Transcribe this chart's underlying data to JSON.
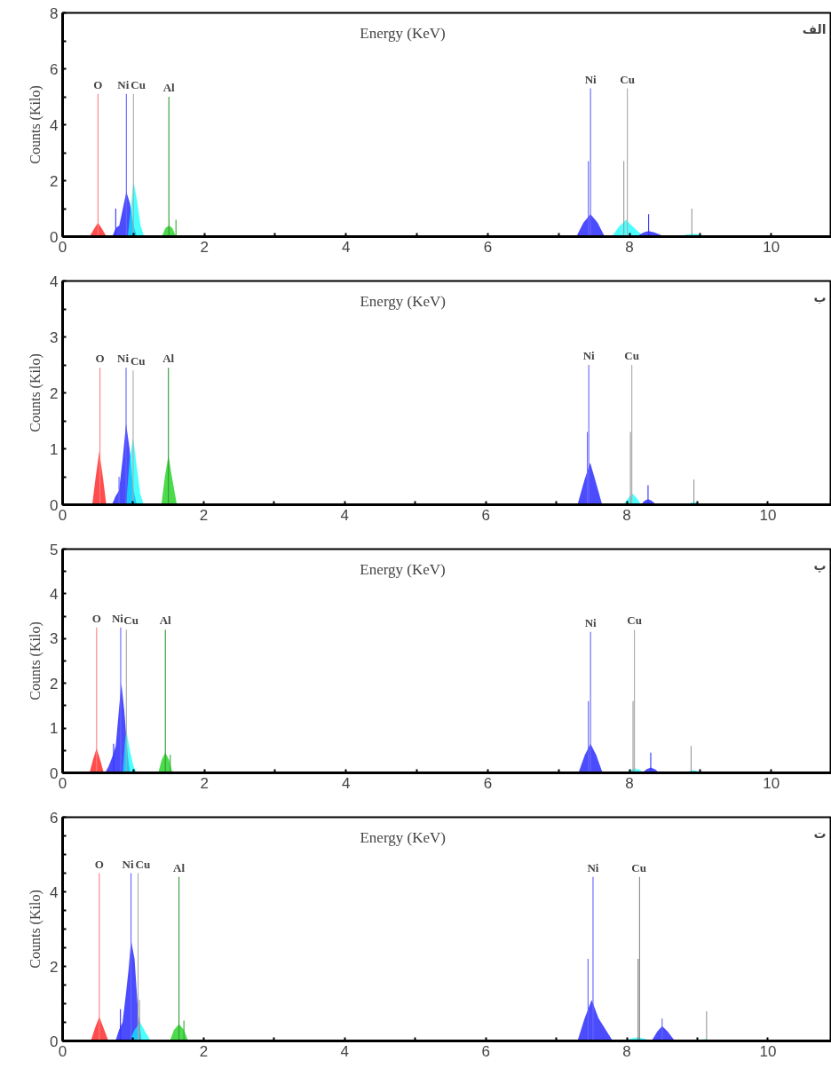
{
  "chart_data": [
    {
      "type": "area",
      "title": "الف",
      "xlabel": "Energy  (KeV)",
      "ylabel": "Counts (Kilo)",
      "xlim": [
        0,
        10.85
      ],
      "ylim": [
        0,
        8
      ],
      "xticks": [
        0,
        {
          "value": 1,
          "label": null
        },
        2,
        {
          "value": 3,
          "label": null
        },
        4,
        {
          "value": 5,
          "label": null
        },
        6,
        {
          "value": 7,
          "label": null
        },
        8,
        {
          "value": 9,
          "label": null
        },
        10
      ],
      "yticks": [
        0,
        {
          "value": 1,
          "label": null
        },
        2,
        {
          "value": 3,
          "label": null
        },
        4,
        {
          "value": 5,
          "label": null
        },
        6,
        {
          "value": 7,
          "label": null
        },
        8
      ],
      "grid": false,
      "series": [
        {
          "color": "#ff0000",
          "x": [
            0.38,
            0.45,
            0.5,
            0.55,
            0.62
          ],
          "values": [
            0,
            0.3,
            0.5,
            0.3,
            0
          ]
        },
        {
          "color": "#0000ff",
          "x": [
            0.7,
            0.75,
            0.8,
            0.85,
            0.9,
            0.95,
            1.0,
            1.05
          ],
          "values": [
            0,
            0.3,
            0.4,
            1.0,
            1.6,
            1.2,
            0.4,
            0
          ]
        },
        {
          "color": "#00ffff",
          "x": [
            0.92,
            0.97,
            1.0,
            1.05,
            1.1,
            1.15
          ],
          "values": [
            0,
            1.2,
            2.0,
            1.3,
            0.4,
            0
          ]
        },
        {
          "color": "#00cc00",
          "x": [
            1.4,
            1.45,
            1.5,
            1.55,
            1.6
          ],
          "values": [
            0,
            0.3,
            0.4,
            0.3,
            0
          ]
        },
        {
          "color": "#0000ff",
          "x": [
            7.25,
            7.35,
            7.45,
            7.55,
            7.65
          ],
          "values": [
            0,
            0.5,
            0.8,
            0.5,
            0
          ]
        },
        {
          "color": "#00ffff",
          "x": [
            7.75,
            7.85,
            7.95,
            8.05,
            8.2
          ],
          "values": [
            0,
            0.35,
            0.6,
            0.35,
            0
          ]
        },
        {
          "color": "#0000ff",
          "x": [
            8.1,
            8.2,
            8.27,
            8.35,
            8.5
          ],
          "values": [
            0,
            0.15,
            0.2,
            0.15,
            0
          ]
        },
        {
          "color": "#00ffff",
          "x": [
            8.7,
            8.8,
            8.9,
            9.0,
            9.05
          ],
          "values": [
            0,
            0.07,
            0.1,
            0.07,
            0
          ]
        },
        {
          "type": "bar",
          "x": [
            0.5,
            0.75,
            0.9,
            1.0,
            1.5,
            1.6,
            7.42,
            7.45,
            7.92,
            7.97,
            8.27,
            8.88
          ],
          "values": [
            5.1,
            1.0,
            5.1,
            5.1,
            5.0,
            0.6,
            2.7,
            5.3,
            2.7,
            5.3,
            0.8,
            1.0
          ],
          "colors": [
            "#ff8080",
            "#3333ff",
            "#6666ff",
            "#aaaaaa",
            "#339933",
            "#33aa33",
            "#6666ff",
            "#6666ff",
            "#999999",
            "#aaaaaa",
            "#3333ff",
            "#999999"
          ]
        }
      ],
      "annotations": [
        {
          "text": "O",
          "x": 0.5,
          "y": 5.1
        },
        {
          "text": "Ni",
          "x": 0.9,
          "y": 5.1
        },
        {
          "text": "Cu",
          "x": 1.0,
          "y": 5.1
        },
        {
          "text": "Al",
          "x": 1.5,
          "y": 5.0
        },
        {
          "text": "Ni",
          "x": 7.45,
          "y": 5.3
        },
        {
          "text": "Cu",
          "x": 7.97,
          "y": 5.3
        }
      ]
    },
    {
      "type": "area",
      "title": "ب",
      "xlabel": "Energy  (KeV)",
      "ylabel": "Counts (Kilo)",
      "xlim": [
        0,
        10.9
      ],
      "ylim": [
        0,
        4
      ],
      "xticks": [
        0,
        {
          "value": 1,
          "label": null
        },
        2,
        {
          "value": 3,
          "label": null
        },
        4,
        {
          "value": 5,
          "label": null
        },
        6,
        {
          "value": 7,
          "label": null
        },
        8,
        {
          "value": 9,
          "label": null
        },
        10
      ],
      "yticks": [
        0,
        {
          "value": 0.5,
          "label": null
        },
        1,
        {
          "value": 1.5,
          "label": null
        },
        2,
        {
          "value": 2.5,
          "label": null
        },
        3,
        {
          "value": 3.5,
          "label": null
        },
        4
      ],
      "grid": false,
      "series": [
        {
          "color": "#ff0000",
          "x": [
            0.42,
            0.47,
            0.52,
            0.57,
            0.62
          ],
          "values": [
            0,
            0.5,
            0.95,
            0.5,
            0
          ]
        },
        {
          "color": "#0000ff",
          "x": [
            0.7,
            0.75,
            0.8,
            0.85,
            0.9,
            0.95,
            1.0,
            1.05
          ],
          "values": [
            0,
            0.15,
            0.25,
            0.8,
            1.45,
            1.0,
            0.3,
            0
          ]
        },
        {
          "color": "#00ffff",
          "x": [
            0.9,
            0.95,
            1.0,
            1.05,
            1.1,
            1.15
          ],
          "values": [
            0,
            0.8,
            1.2,
            0.7,
            0.2,
            0
          ]
        },
        {
          "color": "#00cc00",
          "x": [
            1.4,
            1.45,
            1.5,
            1.55,
            1.62
          ],
          "values": [
            0,
            0.5,
            0.88,
            0.5,
            0
          ]
        },
        {
          "color": "#0000ff",
          "x": [
            7.3,
            7.4,
            7.48,
            7.55,
            7.65
          ],
          "values": [
            0,
            0.45,
            0.75,
            0.45,
            0
          ]
        },
        {
          "color": "#00ffff",
          "x": [
            7.95,
            8.02,
            8.08,
            8.14,
            8.2
          ],
          "values": [
            0,
            0.12,
            0.2,
            0.12,
            0
          ]
        },
        {
          "color": "#0000ff",
          "x": [
            8.2,
            8.25,
            8.3,
            8.35,
            8.42
          ],
          "values": [
            0,
            0.07,
            0.1,
            0.07,
            0
          ]
        },
        {
          "color": "#00ffff",
          "x": [
            8.85,
            8.9,
            8.95,
            9.0,
            9.05
          ],
          "values": [
            0,
            0.03,
            0.05,
            0.03,
            0
          ]
        },
        {
          "type": "bar",
          "x": [
            0.53,
            0.8,
            0.9,
            1.0,
            1.5,
            7.44,
            7.46,
            8.05,
            8.07,
            8.3,
            8.95
          ],
          "values": [
            2.45,
            0.5,
            2.45,
            2.4,
            2.45,
            1.3,
            2.5,
            1.3,
            2.5,
            0.35,
            0.45
          ],
          "colors": [
            "#ff8080",
            "#6666ff",
            "#6666ff",
            "#aaaaaa",
            "#339933",
            "#6666ff",
            "#6666ff",
            "#999999",
            "#aaaaaa",
            "#3333ff",
            "#999999"
          ]
        }
      ],
      "annotations": [
        {
          "text": "O",
          "x": 0.53,
          "y": 2.45
        },
        {
          "text": "Ni",
          "x": 0.9,
          "y": 2.45
        },
        {
          "text": "Cu",
          "x": 1.0,
          "y": 2.4
        },
        {
          "text": "Al",
          "x": 1.5,
          "y": 2.45
        },
        {
          "text": "Ni",
          "x": 7.46,
          "y": 2.5
        },
        {
          "text": "Cu",
          "x": 8.07,
          "y": 2.5
        }
      ]
    },
    {
      "type": "area",
      "title": "پ",
      "xlabel": "Energy  (KeV)",
      "ylabel": "Counts (Kilo)",
      "xlim": [
        0,
        10.85
      ],
      "ylim": [
        0,
        5
      ],
      "xticks": [
        0,
        {
          "value": 1,
          "label": null
        },
        2,
        {
          "value": 3,
          "label": null
        },
        4,
        {
          "value": 5,
          "label": null
        },
        6,
        {
          "value": 7,
          "label": null
        },
        8,
        {
          "value": 9,
          "label": null
        },
        10
      ],
      "yticks": [
        0,
        {
          "value": 0.5,
          "label": null
        },
        1,
        {
          "value": 1.5,
          "label": null
        },
        2,
        {
          "value": 2.5,
          "label": null
        },
        3,
        {
          "value": 3.5,
          "label": null
        },
        4,
        {
          "value": 4.5,
          "label": null
        },
        5
      ],
      "grid": false,
      "series": [
        {
          "color": "#ff0000",
          "x": [
            0.38,
            0.43,
            0.48,
            0.53,
            0.58
          ],
          "values": [
            0,
            0.3,
            0.55,
            0.3,
            0
          ]
        },
        {
          "color": "#0000ff",
          "x": [
            0.6,
            0.65,
            0.7,
            0.75,
            0.8,
            0.83,
            0.87,
            0.92,
            0.95
          ],
          "values": [
            0,
            0.15,
            0.35,
            0.6,
            1.5,
            2.0,
            1.4,
            0.4,
            0
          ]
        },
        {
          "color": "#00ffff",
          "x": [
            0.85,
            0.88,
            0.9,
            0.95,
            1.0,
            1.05
          ],
          "values": [
            0,
            0.7,
            0.95,
            0.5,
            0.15,
            0
          ]
        },
        {
          "color": "#00cc00",
          "x": [
            1.35,
            1.4,
            1.45,
            1.5,
            1.55
          ],
          "values": [
            0,
            0.3,
            0.45,
            0.3,
            0
          ]
        },
        {
          "color": "#0000ff",
          "x": [
            7.28,
            7.37,
            7.45,
            7.53,
            7.62
          ],
          "values": [
            0,
            0.4,
            0.65,
            0.4,
            0
          ]
        },
        {
          "color": "#00ffff",
          "x": [
            7.95,
            8.02,
            8.08,
            8.14,
            8.2
          ],
          "values": [
            0,
            0.07,
            0.1,
            0.07,
            0
          ]
        },
        {
          "color": "#0000ff",
          "x": [
            8.18,
            8.24,
            8.3,
            8.36,
            8.42
          ],
          "values": [
            0,
            0.08,
            0.12,
            0.08,
            0
          ]
        },
        {
          "color": "#00ffff",
          "x": [
            8.8,
            8.85,
            8.9,
            8.95,
            9.0
          ],
          "values": [
            0,
            0.04,
            0.06,
            0.04,
            0
          ]
        },
        {
          "type": "bar",
          "x": [
            0.48,
            0.72,
            0.82,
            0.9,
            1.45,
            1.52,
            7.42,
            7.45,
            8.05,
            8.07,
            8.3,
            8.87
          ],
          "values": [
            3.25,
            0.65,
            3.25,
            3.2,
            3.2,
            0.4,
            1.6,
            3.15,
            1.6,
            3.2,
            0.45,
            0.6
          ],
          "colors": [
            "#ff8080",
            "#3333ff",
            "#6666ff",
            "#aaaaaa",
            "#339933",
            "#33aa33",
            "#6666ff",
            "#6666ff",
            "#999999",
            "#aaaaaa",
            "#3333ff",
            "#999999"
          ]
        }
      ],
      "annotations": [
        {
          "text": "O",
          "x": 0.48,
          "y": 3.25
        },
        {
          "text": "Ni",
          "x": 0.82,
          "y": 3.25
        },
        {
          "text": "Cu",
          "x": 0.9,
          "y": 3.2
        },
        {
          "text": "Al",
          "x": 1.45,
          "y": 3.2
        },
        {
          "text": "Ni",
          "x": 7.45,
          "y": 3.15
        },
        {
          "text": "Cu",
          "x": 8.07,
          "y": 3.2
        }
      ]
    },
    {
      "type": "area",
      "title": "ت",
      "xlabel": "Energy  (KeV)",
      "ylabel": "Counts (Kilo)",
      "xlim": [
        0,
        10.9
      ],
      "ylim": [
        0,
        6
      ],
      "xticks": [
        0,
        {
          "value": 1,
          "label": null
        },
        2,
        {
          "value": 3,
          "label": null
        },
        4,
        {
          "value": 5,
          "label": null
        },
        6,
        {
          "value": 7,
          "label": null
        },
        8,
        {
          "value": 9,
          "label": null
        },
        10
      ],
      "yticks": [
        0,
        {
          "value": 0.5,
          "label": null
        },
        {
          "value": 1,
          "label": null
        },
        {
          "value": 1.5,
          "label": null
        },
        2,
        {
          "value": 2.5,
          "label": null
        },
        {
          "value": 3,
          "label": null
        },
        {
          "value": 3.5,
          "label": null
        },
        4,
        {
          "value": 4.5,
          "label": null
        },
        {
          "value": 5,
          "label": null
        },
        {
          "value": 5.5,
          "label": null
        },
        6
      ],
      "grid": false,
      "series": [
        {
          "color": "#ff0000",
          "x": [
            0.4,
            0.46,
            0.52,
            0.58,
            0.65
          ],
          "values": [
            0,
            0.35,
            0.65,
            0.35,
            0
          ]
        },
        {
          "color": "#0000ff",
          "x": [
            0.75,
            0.8,
            0.85,
            0.9,
            0.94,
            0.97,
            1.02,
            1.07,
            1.12
          ],
          "values": [
            0,
            0.3,
            0.5,
            1.3,
            2.0,
            2.7,
            2.2,
            0.8,
            0
          ]
        },
        {
          "color": "#00ffff",
          "x": [
            0.95,
            1.02,
            1.1,
            1.17,
            1.25
          ],
          "values": [
            0,
            0.3,
            0.5,
            0.25,
            0
          ]
        },
        {
          "color": "#00cc00",
          "x": [
            1.52,
            1.58,
            1.65,
            1.72,
            1.78
          ],
          "values": [
            0,
            0.3,
            0.45,
            0.3,
            0
          ]
        },
        {
          "color": "#0000ff",
          "x": [
            7.3,
            7.4,
            7.5,
            7.6,
            7.8
          ],
          "values": [
            0,
            0.6,
            1.1,
            0.6,
            0
          ]
        },
        {
          "color": "#00ffff",
          "x": [
            7.95,
            8.05,
            8.15,
            8.25,
            8.35
          ],
          "values": [
            0,
            0.06,
            0.1,
            0.06,
            0
          ]
        },
        {
          "color": "#0000ff",
          "x": [
            8.35,
            8.43,
            8.5,
            8.58,
            8.68
          ],
          "values": [
            0,
            0.25,
            0.4,
            0.25,
            0
          ]
        },
        {
          "color": "#00ffff",
          "x": [
            8.95,
            9.03,
            9.1,
            9.17,
            9.25
          ],
          "values": [
            0,
            0.03,
            0.05,
            0.03,
            0
          ]
        },
        {
          "type": "bar",
          "x": [
            0.52,
            0.82,
            0.97,
            1.07,
            1.09,
            1.65,
            1.72,
            7.45,
            7.52,
            8.16,
            8.18,
            8.5,
            9.13
          ],
          "values": [
            4.5,
            0.85,
            4.5,
            4.5,
            1.1,
            4.4,
            0.55,
            2.2,
            4.4,
            2.2,
            4.4,
            0.6,
            0.8
          ],
          "colors": [
            "#ff8080",
            "#3333ff",
            "#6666ff",
            "#aaaaaa",
            "#999999",
            "#339933",
            "#33aa33",
            "#6666ff",
            "#6666ff",
            "#777777",
            "#888888",
            "#6666ff",
            "#999999"
          ]
        }
      ],
      "annotations": [
        {
          "text": "O",
          "x": 0.52,
          "y": 4.5
        },
        {
          "text": "Ni",
          "x": 0.97,
          "y": 4.5
        },
        {
          "text": "Cu",
          "x": 1.07,
          "y": 4.5
        },
        {
          "text": "Al",
          "x": 1.65,
          "y": 4.4
        },
        {
          "text": "Ni",
          "x": 7.52,
          "y": 4.4
        },
        {
          "text": "Cu",
          "x": 8.17,
          "y": 4.4
        }
      ]
    }
  ]
}
